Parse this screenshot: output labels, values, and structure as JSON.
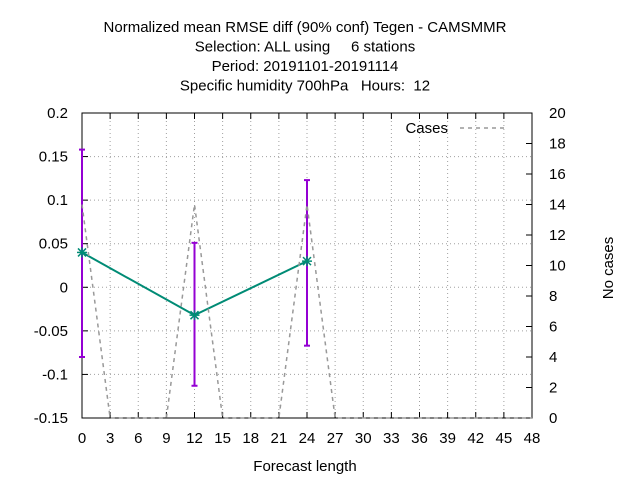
{
  "chart_data": {
    "type": "line",
    "title": [
      "Normalized mean RMSE diff (90% conf) Tegen - CAMSMMR",
      "Selection: ALL using     6 stations",
      "Period: 20191101-20191114",
      "Specific humidity 700hPa   Hours:  12"
    ],
    "xlabel": "Forecast length",
    "ylabel": "",
    "y2label": "No cases",
    "xlim": [
      0,
      48
    ],
    "ylim": [
      -0.15,
      0.2
    ],
    "y2lim": [
      0,
      20
    ],
    "x_ticks": [
      "0",
      "3",
      "6",
      "9",
      "12",
      "15",
      "18",
      "21",
      "24",
      "27",
      "30",
      "33",
      "36",
      "39",
      "42",
      "45",
      "48"
    ],
    "y_ticks": [
      "0.2",
      "0.15",
      "0.1",
      "0.05",
      "0",
      "-0.05",
      "-0.1",
      "-0.15"
    ],
    "y2_ticks": [
      "20",
      "18",
      "16",
      "14",
      "12",
      "10",
      "8",
      "6",
      "4",
      "2",
      "0"
    ],
    "grid": true,
    "legend_position": "top-right",
    "series": [
      {
        "name": "",
        "axis": "y",
        "color": "#008b75",
        "error_color": "#9400d3",
        "x": [
          0,
          12,
          24
        ],
        "y": [
          0.04,
          -0.032,
          0.03
        ],
        "error_low": [
          -0.08,
          -0.113,
          -0.067
        ],
        "error_high": [
          0.158,
          0.051,
          0.123
        ]
      },
      {
        "name": "Cases",
        "axis": "y2",
        "color": "#999999",
        "style": "dashed",
        "x": [
          0,
          3,
          9,
          12,
          15,
          21,
          24,
          27,
          48
        ],
        "y": [
          14,
          0,
          0,
          14,
          0,
          0,
          14,
          0,
          0
        ]
      }
    ]
  }
}
